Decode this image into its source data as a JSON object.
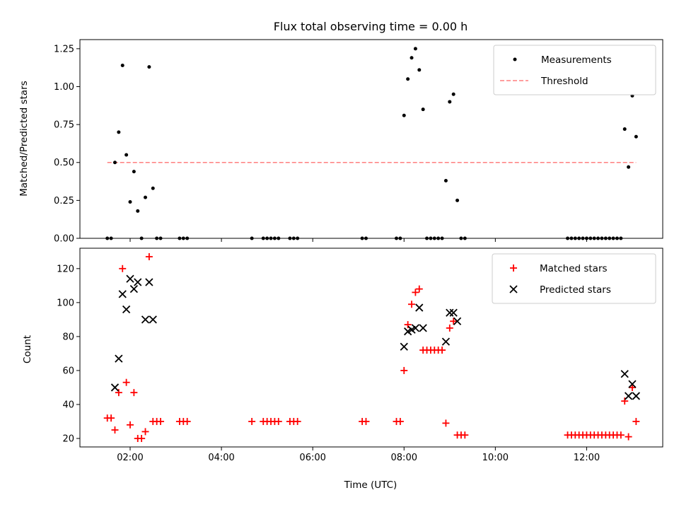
{
  "chart_data": [
    {
      "type": "scatter",
      "title": "Flux total observing time = 0.00 h",
      "xlabel": "",
      "ylabel": "Matched/Predicted stars",
      "xlim": [
        "00:54",
        "13:40"
      ],
      "ylim": [
        0,
        1.31
      ],
      "yticks": [
        "0.00",
        "0.25",
        "0.50",
        "0.75",
        "1.00",
        "1.25"
      ],
      "xticks": [
        "02:00",
        "04:00",
        "06:00",
        "08:00",
        "10:00",
        "12:00"
      ],
      "legend": {
        "position": "top-right",
        "entries": [
          "Measurements",
          "Threshold"
        ]
      },
      "threshold": {
        "name": "Threshold",
        "value": 0.5,
        "x_range": [
          "01:30",
          "13:05"
        ],
        "color": "#ff7f7f"
      },
      "series": [
        {
          "name": "Measurements",
          "color": "#000000",
          "points": [
            [
              "01:30",
              0.0
            ],
            [
              "01:35",
              0.0
            ],
            [
              "01:40",
              0.5
            ],
            [
              "01:45",
              0.7
            ],
            [
              "01:50",
              1.14
            ],
            [
              "01:55",
              0.55
            ],
            [
              "02:00",
              0.24
            ],
            [
              "02:05",
              0.44
            ],
            [
              "02:10",
              0.18
            ],
            [
              "02:15",
              0.0
            ],
            [
              "02:20",
              0.27
            ],
            [
              "02:25",
              1.13
            ],
            [
              "02:30",
              0.33
            ],
            [
              "02:35",
              0.0
            ],
            [
              "02:40",
              0.0
            ],
            [
              "03:05",
              0.0
            ],
            [
              "03:10",
              0.0
            ],
            [
              "03:15",
              0.0
            ],
            [
              "04:40",
              0.0
            ],
            [
              "04:55",
              0.0
            ],
            [
              "05:00",
              0.0
            ],
            [
              "05:05",
              0.0
            ],
            [
              "05:10",
              0.0
            ],
            [
              "05:15",
              0.0
            ],
            [
              "05:30",
              0.0
            ],
            [
              "05:35",
              0.0
            ],
            [
              "05:40",
              0.0
            ],
            [
              "07:05",
              0.0
            ],
            [
              "07:10",
              0.0
            ],
            [
              "07:50",
              0.0
            ],
            [
              "07:55",
              0.0
            ],
            [
              "08:00",
              0.81
            ],
            [
              "08:05",
              1.05
            ],
            [
              "08:10",
              1.19
            ],
            [
              "08:15",
              1.25
            ],
            [
              "08:20",
              1.11
            ],
            [
              "08:25",
              0.85
            ],
            [
              "08:30",
              0.0
            ],
            [
              "08:35",
              0.0
            ],
            [
              "08:40",
              0.0
            ],
            [
              "08:45",
              0.0
            ],
            [
              "08:50",
              0.0
            ],
            [
              "08:55",
              0.38
            ],
            [
              "09:00",
              0.9
            ],
            [
              "09:05",
              0.95
            ],
            [
              "09:10",
              0.25
            ],
            [
              "09:15",
              0.0
            ],
            [
              "09:20",
              0.0
            ],
            [
              "11:35",
              0.0
            ],
            [
              "11:40",
              0.0
            ],
            [
              "11:45",
              0.0
            ],
            [
              "11:50",
              0.0
            ],
            [
              "11:55",
              0.0
            ],
            [
              "12:00",
              0.0
            ],
            [
              "12:05",
              0.0
            ],
            [
              "12:10",
              0.0
            ],
            [
              "12:15",
              0.0
            ],
            [
              "12:20",
              0.0
            ],
            [
              "12:25",
              0.0
            ],
            [
              "12:30",
              0.0
            ],
            [
              "12:35",
              0.0
            ],
            [
              "12:40",
              0.0
            ],
            [
              "12:45",
              0.0
            ],
            [
              "12:50",
              0.72
            ],
            [
              "12:55",
              0.47
            ],
            [
              "13:00",
              0.94
            ],
            [
              "13:05",
              0.67
            ]
          ]
        }
      ]
    },
    {
      "type": "scatter",
      "title": "",
      "xlabel": "Time (UTC)",
      "ylabel": "Count",
      "xlim": [
        "00:54",
        "13:40"
      ],
      "ylim": [
        15,
        132
      ],
      "yticks": [
        "20",
        "40",
        "60",
        "80",
        "100",
        "120"
      ],
      "xticks": [
        "02:00",
        "04:00",
        "06:00",
        "08:00",
        "10:00",
        "12:00"
      ],
      "legend": {
        "position": "top-right",
        "entries": [
          "Matched stars",
          "Predicted stars"
        ]
      },
      "series": [
        {
          "name": "Matched stars",
          "color": "#ff0000",
          "marker": "plus",
          "points": [
            [
              "01:30",
              32
            ],
            [
              "01:35",
              32
            ],
            [
              "01:40",
              25
            ],
            [
              "01:45",
              47
            ],
            [
              "01:50",
              120
            ],
            [
              "01:55",
              53
            ],
            [
              "02:00",
              28
            ],
            [
              "02:05",
              47
            ],
            [
              "02:10",
              20
            ],
            [
              "02:15",
              20
            ],
            [
              "02:20",
              24
            ],
            [
              "02:25",
              127
            ],
            [
              "02:30",
              30
            ],
            [
              "02:35",
              30
            ],
            [
              "02:40",
              30
            ],
            [
              "03:05",
              30
            ],
            [
              "03:10",
              30
            ],
            [
              "03:15",
              30
            ],
            [
              "04:40",
              30
            ],
            [
              "04:55",
              30
            ],
            [
              "05:00",
              30
            ],
            [
              "05:05",
              30
            ],
            [
              "05:10",
              30
            ],
            [
              "05:15",
              30
            ],
            [
              "05:30",
              30
            ],
            [
              "05:35",
              30
            ],
            [
              "05:40",
              30
            ],
            [
              "07:05",
              30
            ],
            [
              "07:10",
              30
            ],
            [
              "07:50",
              30
            ],
            [
              "07:55",
              30
            ],
            [
              "08:00",
              60
            ],
            [
              "08:05",
              87
            ],
            [
              "08:10",
              99
            ],
            [
              "08:15",
              106
            ],
            [
              "08:20",
              108
            ],
            [
              "08:25",
              72
            ],
            [
              "08:30",
              72
            ],
            [
              "08:35",
              72
            ],
            [
              "08:40",
              72
            ],
            [
              "08:45",
              72
            ],
            [
              "08:50",
              72
            ],
            [
              "08:55",
              29
            ],
            [
              "09:00",
              85
            ],
            [
              "09:05",
              89
            ],
            [
              "09:10",
              22
            ],
            [
              "09:15",
              22
            ],
            [
              "09:20",
              22
            ],
            [
              "11:35",
              22
            ],
            [
              "11:40",
              22
            ],
            [
              "11:45",
              22
            ],
            [
              "11:50",
              22
            ],
            [
              "11:55",
              22
            ],
            [
              "12:00",
              22
            ],
            [
              "12:05",
              22
            ],
            [
              "12:10",
              22
            ],
            [
              "12:15",
              22
            ],
            [
              "12:20",
              22
            ],
            [
              "12:25",
              22
            ],
            [
              "12:30",
              22
            ],
            [
              "12:35",
              22
            ],
            [
              "12:40",
              22
            ],
            [
              "12:45",
              22
            ],
            [
              "12:50",
              42
            ],
            [
              "12:55",
              21
            ],
            [
              "13:00",
              50
            ],
            [
              "13:05",
              30
            ]
          ]
        },
        {
          "name": "Predicted stars",
          "color": "#000000",
          "marker": "x",
          "points": [
            [
              "01:40",
              50
            ],
            [
              "01:45",
              67
            ],
            [
              "01:50",
              105
            ],
            [
              "01:55",
              96
            ],
            [
              "02:00",
              114
            ],
            [
              "02:05",
              108
            ],
            [
              "02:10",
              112
            ],
            [
              "02:20",
              90
            ],
            [
              "02:25",
              112
            ],
            [
              "02:30",
              90
            ],
            [
              "08:00",
              74
            ],
            [
              "08:05",
              83
            ],
            [
              "08:10",
              84
            ],
            [
              "08:15",
              85
            ],
            [
              "08:20",
              97
            ],
            [
              "08:25",
              85
            ],
            [
              "08:55",
              77
            ],
            [
              "09:00",
              94
            ],
            [
              "09:05",
              94
            ],
            [
              "09:10",
              89
            ],
            [
              "12:50",
              58
            ],
            [
              "12:55",
              45
            ],
            [
              "13:00",
              52
            ],
            [
              "13:05",
              45
            ]
          ]
        }
      ]
    }
  ]
}
